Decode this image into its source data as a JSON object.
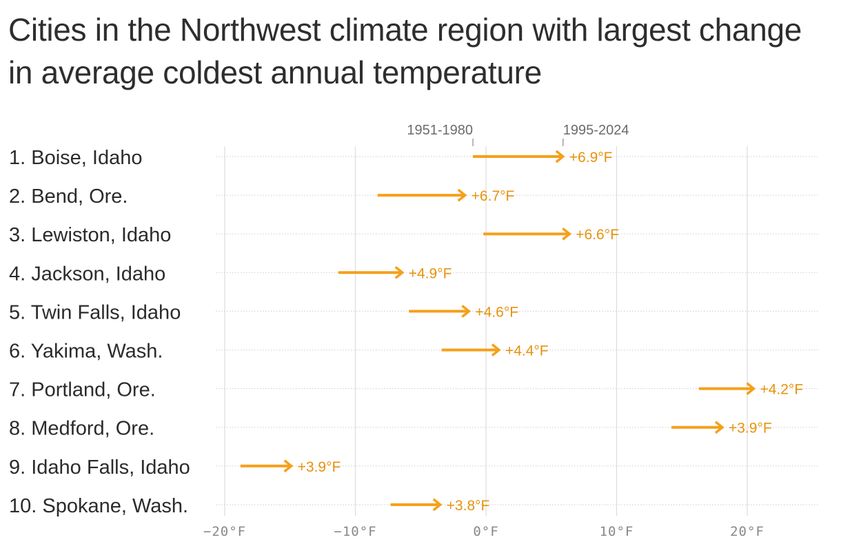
{
  "title": "Cities in the Northwest climate region with largest change in average coldest annual temperature",
  "chart_data": {
    "type": "arrow-dumbbell",
    "legend": {
      "start_label": "1951-1980",
      "end_label": "1995-2024"
    },
    "x_axis": {
      "ticks": [
        -20,
        -10,
        0,
        10,
        20
      ],
      "tick_labels": [
        "−20°F",
        "−10°F",
        "0°F",
        "10°F",
        "20°F"
      ],
      "range": [
        -20.8,
        25.3
      ]
    },
    "rows": [
      {
        "label": "1. Boise, Idaho",
        "start": -1.0,
        "end": 5.9,
        "change_label": "+6.9°F"
      },
      {
        "label": "2. Bend, Ore.",
        "start": -8.3,
        "end": -1.6,
        "change_label": "+6.7°F"
      },
      {
        "label": "3. Lewiston, Idaho",
        "start": -0.2,
        "end": 6.4,
        "change_label": "+6.6°F"
      },
      {
        "label": "4. Jackson, Idaho",
        "start": -11.3,
        "end": -6.4,
        "change_label": "+4.9°F"
      },
      {
        "label": "5. Twin Falls, Idaho",
        "start": -5.9,
        "end": -1.3,
        "change_label": "+4.6°F"
      },
      {
        "label": "6. Yakima, Wash.",
        "start": -3.4,
        "end": 1.0,
        "change_label": "+4.4°F"
      },
      {
        "label": "7. Portland, Ore.",
        "start": 16.3,
        "end": 20.5,
        "change_label": "+4.2°F"
      },
      {
        "label": "8. Medford, Ore.",
        "start": 14.2,
        "end": 18.1,
        "change_label": "+3.9°F"
      },
      {
        "label": "9. Idaho Falls, Idaho",
        "start": -18.8,
        "end": -14.9,
        "change_label": "+3.9°F"
      },
      {
        "label": "10. Spokane, Wash.",
        "start": -7.3,
        "end": -3.5,
        "change_label": "+3.8°F"
      }
    ],
    "colors": {
      "arrow": "#f5a01a",
      "change_label": "#e8920c",
      "grid": "#dcdcdc",
      "row_rule": "#cccccc",
      "tick_text": "#888888",
      "legend_text": "#6b6b6b"
    },
    "grid": true
  }
}
